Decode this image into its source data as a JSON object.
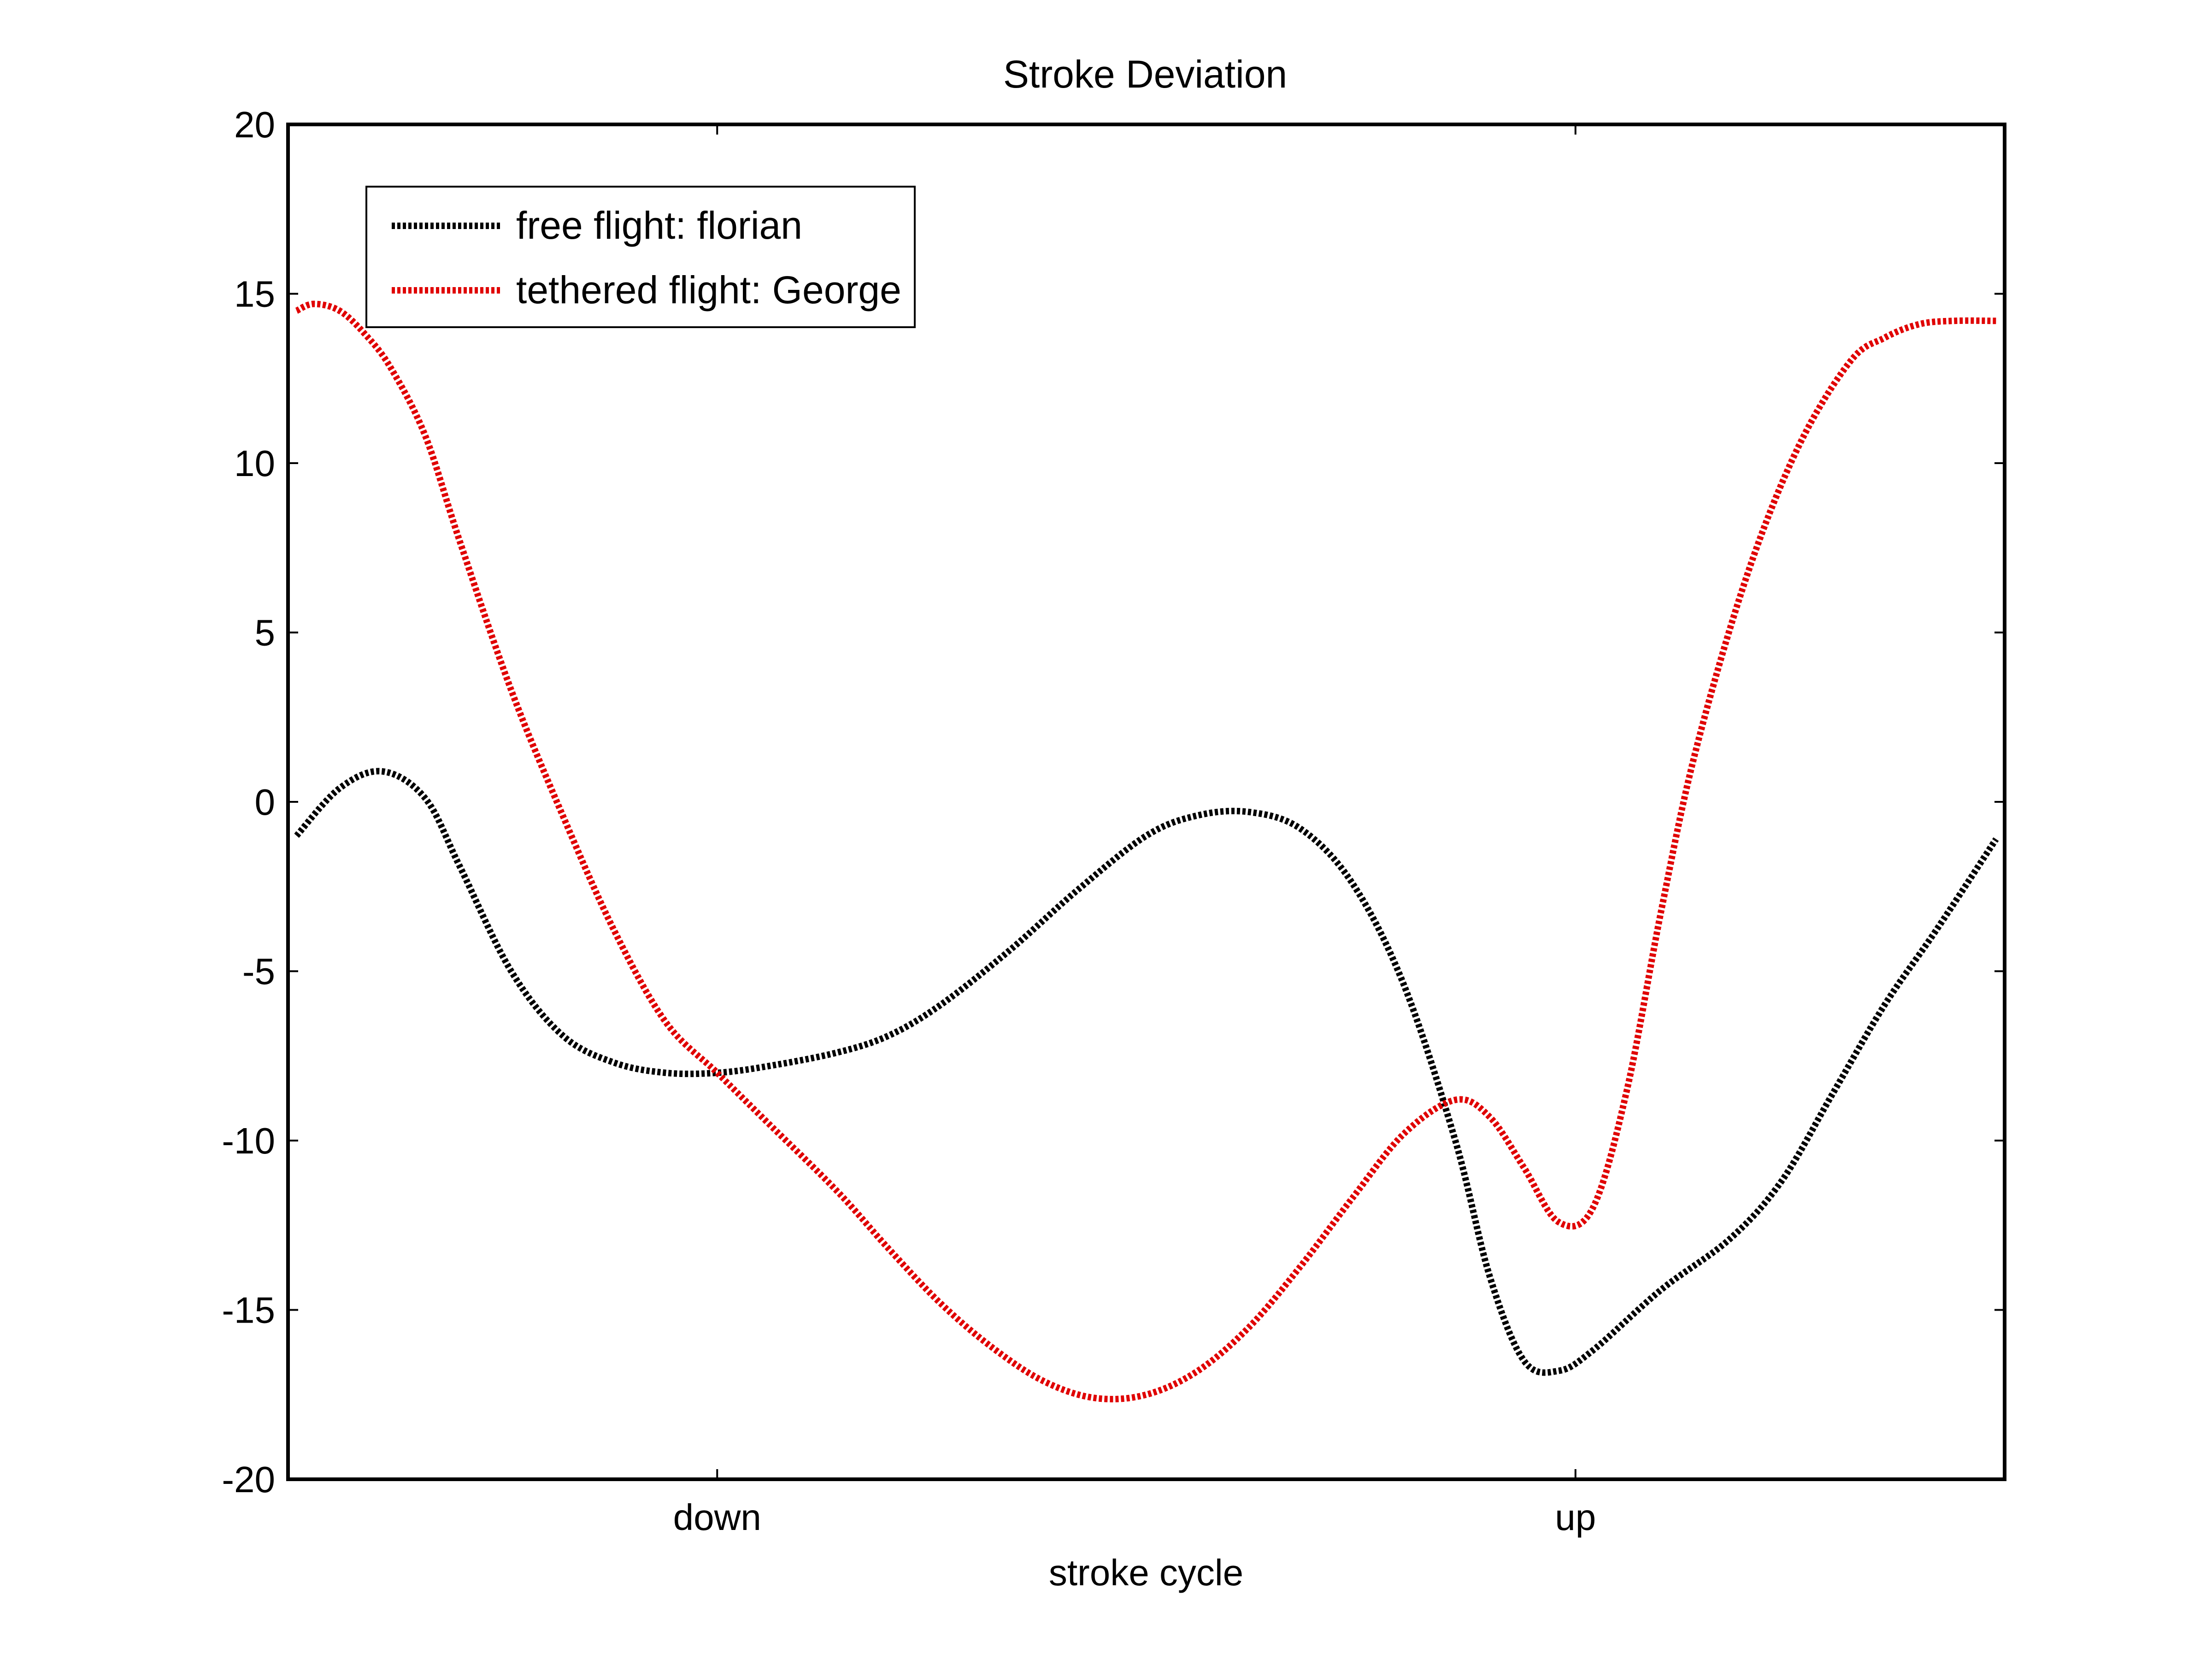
{
  "chart_data": {
    "type": "line",
    "title": "Stroke Deviation",
    "xlabel": "stroke cycle",
    "ylabel": "",
    "xlim": [
      0,
      1
    ],
    "ylim": [
      -20,
      20
    ],
    "grid": false,
    "legend_position": "top-left",
    "x_ticks": [
      {
        "value": 0.25,
        "label": "down"
      },
      {
        "value": 0.75,
        "label": "up"
      }
    ],
    "y_ticks": [
      {
        "value": 20,
        "label": "20"
      },
      {
        "value": 15,
        "label": "15"
      },
      {
        "value": 10,
        "label": "10"
      },
      {
        "value": 5,
        "label": "5"
      },
      {
        "value": 0,
        "label": "0"
      },
      {
        "value": -5,
        "label": "-5"
      },
      {
        "value": -10,
        "label": "-10"
      },
      {
        "value": -15,
        "label": "-15"
      },
      {
        "value": -20,
        "label": "-20"
      }
    ],
    "series": [
      {
        "name": "free flight: florian",
        "color": "#000000",
        "line_style": "dotted",
        "points": [
          [
            0.005,
            -1.0
          ],
          [
            0.03,
            0.4
          ],
          [
            0.055,
            0.9
          ],
          [
            0.08,
            0.1
          ],
          [
            0.1,
            -1.9
          ],
          [
            0.13,
            -5.0
          ],
          [
            0.16,
            -6.9
          ],
          [
            0.19,
            -7.7
          ],
          [
            0.22,
            -8.0
          ],
          [
            0.25,
            -8.0
          ],
          [
            0.28,
            -7.8
          ],
          [
            0.32,
            -7.4
          ],
          [
            0.35,
            -6.9
          ],
          [
            0.38,
            -6.0
          ],
          [
            0.42,
            -4.4
          ],
          [
            0.46,
            -2.6
          ],
          [
            0.5,
            -1.0
          ],
          [
            0.53,
            -0.4
          ],
          [
            0.56,
            -0.3
          ],
          [
            0.59,
            -0.8
          ],
          [
            0.62,
            -2.4
          ],
          [
            0.65,
            -5.4
          ],
          [
            0.68,
            -10.0
          ],
          [
            0.7,
            -14.0
          ],
          [
            0.72,
            -16.5
          ],
          [
            0.74,
            -16.8
          ],
          [
            0.76,
            -16.2
          ],
          [
            0.8,
            -14.4
          ],
          [
            0.84,
            -12.9
          ],
          [
            0.87,
            -11.2
          ],
          [
            0.9,
            -8.6
          ],
          [
            0.93,
            -6.0
          ],
          [
            0.96,
            -3.8
          ],
          [
            0.995,
            -1.1
          ]
        ]
      },
      {
        "name": "tethered flight: George",
        "color": "#e00000",
        "line_style": "dotted",
        "points": [
          [
            0.005,
            14.5
          ],
          [
            0.015,
            14.7
          ],
          [
            0.03,
            14.5
          ],
          [
            0.045,
            13.8
          ],
          [
            0.06,
            12.8
          ],
          [
            0.08,
            10.8
          ],
          [
            0.1,
            7.7
          ],
          [
            0.13,
            3.3
          ],
          [
            0.16,
            -0.4
          ],
          [
            0.19,
            -3.8
          ],
          [
            0.22,
            -6.5
          ],
          [
            0.25,
            -8.0
          ],
          [
            0.28,
            -9.5
          ],
          [
            0.32,
            -11.5
          ],
          [
            0.35,
            -13.2
          ],
          [
            0.38,
            -14.8
          ],
          [
            0.41,
            -16.1
          ],
          [
            0.44,
            -17.1
          ],
          [
            0.47,
            -17.6
          ],
          [
            0.5,
            -17.5
          ],
          [
            0.53,
            -16.8
          ],
          [
            0.56,
            -15.5
          ],
          [
            0.59,
            -13.7
          ],
          [
            0.62,
            -11.7
          ],
          [
            0.65,
            -9.8
          ],
          [
            0.68,
            -8.8
          ],
          [
            0.7,
            -9.3
          ],
          [
            0.72,
            -10.8
          ],
          [
            0.74,
            -12.4
          ],
          [
            0.76,
            -12.0
          ],
          [
            0.78,
            -8.5
          ],
          [
            0.8,
            -3.2
          ],
          [
            0.82,
            1.5
          ],
          [
            0.85,
            6.7
          ],
          [
            0.88,
            10.5
          ],
          [
            0.91,
            13.0
          ],
          [
            0.93,
            13.7
          ],
          [
            0.95,
            14.1
          ],
          [
            0.97,
            14.2
          ],
          [
            0.995,
            14.2
          ]
        ]
      }
    ]
  }
}
